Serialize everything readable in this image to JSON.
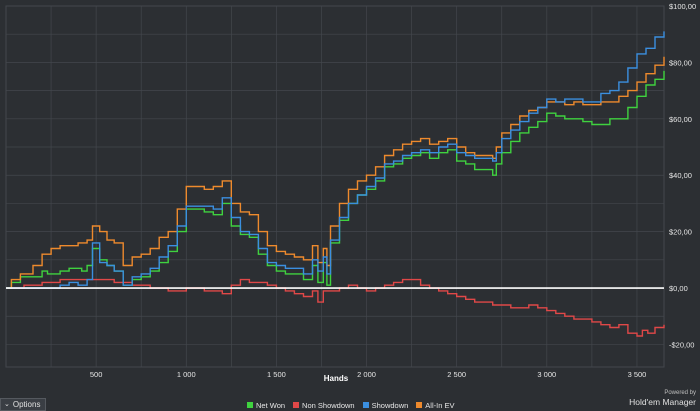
{
  "chart_data": {
    "type": "line",
    "xlabel": "Hands",
    "ylabel": "",
    "xlim": [
      0,
      3650
    ],
    "ylim": [
      -28,
      100
    ],
    "x_ticks": [
      500,
      1000,
      1500,
      2000,
      2500,
      3000,
      3500
    ],
    "x_tick_labels": [
      "500",
      "1 000",
      "1 500",
      "2 000",
      "2 500",
      "3 000",
      "3 500"
    ],
    "y_ticks": [
      -20,
      0,
      20,
      40,
      60,
      80,
      100
    ],
    "y_tick_labels": [
      "-$20,00",
      "$0,00",
      "$20,00",
      "$40,00",
      "$60,00",
      "$80,00",
      "$100,00"
    ],
    "zero_line": true,
    "grid": true,
    "legend_position": "bottom-center",
    "series": [
      {
        "name": "Net Won",
        "color": "#3fd23f",
        "points": [
          [
            0,
            0
          ],
          [
            30,
            2
          ],
          [
            80,
            4
          ],
          [
            150,
            4
          ],
          [
            200,
            6
          ],
          [
            230,
            5
          ],
          [
            300,
            6
          ],
          [
            350,
            7
          ],
          [
            420,
            6
          ],
          [
            450,
            8
          ],
          [
            480,
            14
          ],
          [
            520,
            10
          ],
          [
            560,
            8
          ],
          [
            600,
            6
          ],
          [
            650,
            1
          ],
          [
            700,
            3
          ],
          [
            750,
            4
          ],
          [
            800,
            6
          ],
          [
            850,
            9
          ],
          [
            900,
            13
          ],
          [
            950,
            20
          ],
          [
            1000,
            28
          ],
          [
            1050,
            28
          ],
          [
            1100,
            27
          ],
          [
            1150,
            26
          ],
          [
            1200,
            30
          ],
          [
            1250,
            22
          ],
          [
            1300,
            19
          ],
          [
            1350,
            18
          ],
          [
            1400,
            12
          ],
          [
            1450,
            8
          ],
          [
            1500,
            6
          ],
          [
            1550,
            5
          ],
          [
            1600,
            5
          ],
          [
            1650,
            3
          ],
          [
            1700,
            8
          ],
          [
            1730,
            2
          ],
          [
            1760,
            9
          ],
          [
            1780,
            1
          ],
          [
            1800,
            16
          ],
          [
            1850,
            24
          ],
          [
            1900,
            30
          ],
          [
            1950,
            33
          ],
          [
            2000,
            35
          ],
          [
            2050,
            38
          ],
          [
            2100,
            43
          ],
          [
            2150,
            44
          ],
          [
            2200,
            46
          ],
          [
            2250,
            47
          ],
          [
            2300,
            48
          ],
          [
            2350,
            46
          ],
          [
            2400,
            48
          ],
          [
            2450,
            49
          ],
          [
            2500,
            45
          ],
          [
            2550,
            44
          ],
          [
            2600,
            42
          ],
          [
            2650,
            42
          ],
          [
            2700,
            40
          ],
          [
            2720,
            44
          ],
          [
            2750,
            48
          ],
          [
            2800,
            52
          ],
          [
            2850,
            55
          ],
          [
            2900,
            57
          ],
          [
            2950,
            59
          ],
          [
            3000,
            62
          ],
          [
            3050,
            61
          ],
          [
            3100,
            60
          ],
          [
            3150,
            60
          ],
          [
            3200,
            59
          ],
          [
            3250,
            58
          ],
          [
            3300,
            58
          ],
          [
            3350,
            60
          ],
          [
            3400,
            60
          ],
          [
            3450,
            64
          ],
          [
            3500,
            68
          ],
          [
            3550,
            72
          ],
          [
            3600,
            74
          ],
          [
            3650,
            77
          ]
        ]
      },
      {
        "name": "Non Showdown",
        "color": "#e04848",
        "points": [
          [
            0,
            0
          ],
          [
            100,
            1
          ],
          [
            200,
            2
          ],
          [
            300,
            3
          ],
          [
            400,
            3
          ],
          [
            500,
            3
          ],
          [
            600,
            2
          ],
          [
            700,
            1
          ],
          [
            800,
            0
          ],
          [
            900,
            -1
          ],
          [
            1000,
            0
          ],
          [
            1100,
            -1
          ],
          [
            1200,
            -2
          ],
          [
            1250,
            1
          ],
          [
            1300,
            3
          ],
          [
            1350,
            2
          ],
          [
            1400,
            2
          ],
          [
            1450,
            1
          ],
          [
            1500,
            0
          ],
          [
            1550,
            -1
          ],
          [
            1600,
            -2
          ],
          [
            1650,
            -3
          ],
          [
            1700,
            -1
          ],
          [
            1730,
            -5
          ],
          [
            1760,
            -1
          ],
          [
            1800,
            -1
          ],
          [
            1850,
            0
          ],
          [
            1900,
            1
          ],
          [
            1950,
            0
          ],
          [
            2000,
            -1
          ],
          [
            2050,
            0
          ],
          [
            2100,
            1
          ],
          [
            2150,
            2
          ],
          [
            2200,
            3
          ],
          [
            2250,
            3
          ],
          [
            2300,
            1
          ],
          [
            2350,
            0
          ],
          [
            2400,
            -1
          ],
          [
            2450,
            -2
          ],
          [
            2500,
            -3
          ],
          [
            2550,
            -4
          ],
          [
            2600,
            -5
          ],
          [
            2650,
            -5
          ],
          [
            2700,
            -6
          ],
          [
            2750,
            -6
          ],
          [
            2800,
            -7
          ],
          [
            2850,
            -7
          ],
          [
            2900,
            -6
          ],
          [
            2950,
            -7
          ],
          [
            3000,
            -8
          ],
          [
            3050,
            -9
          ],
          [
            3100,
            -10
          ],
          [
            3150,
            -11
          ],
          [
            3200,
            -11
          ],
          [
            3250,
            -12
          ],
          [
            3300,
            -13
          ],
          [
            3350,
            -14
          ],
          [
            3400,
            -13
          ],
          [
            3450,
            -16
          ],
          [
            3500,
            -17
          ],
          [
            3530,
            -15
          ],
          [
            3560,
            -16
          ],
          [
            3600,
            -14
          ],
          [
            3650,
            -13
          ]
        ]
      },
      {
        "name": "Showdown",
        "color": "#3b8fe0",
        "points": [
          [
            0,
            0
          ],
          [
            100,
            0
          ],
          [
            200,
            0
          ],
          [
            300,
            1
          ],
          [
            350,
            2
          ],
          [
            400,
            1
          ],
          [
            450,
            3
          ],
          [
            480,
            16
          ],
          [
            520,
            9
          ],
          [
            560,
            8
          ],
          [
            600,
            6
          ],
          [
            650,
            1
          ],
          [
            700,
            4
          ],
          [
            750,
            5
          ],
          [
            800,
            7
          ],
          [
            850,
            11
          ],
          [
            900,
            15
          ],
          [
            950,
            22
          ],
          [
            1000,
            29
          ],
          [
            1050,
            29
          ],
          [
            1100,
            29
          ],
          [
            1150,
            28
          ],
          [
            1200,
            32
          ],
          [
            1250,
            25
          ],
          [
            1300,
            20
          ],
          [
            1350,
            19
          ],
          [
            1400,
            14
          ],
          [
            1450,
            9
          ],
          [
            1500,
            8
          ],
          [
            1550,
            7
          ],
          [
            1600,
            7
          ],
          [
            1650,
            5
          ],
          [
            1700,
            10
          ],
          [
            1730,
            6
          ],
          [
            1760,
            11
          ],
          [
            1780,
            5
          ],
          [
            1800,
            17
          ],
          [
            1850,
            25
          ],
          [
            1900,
            30
          ],
          [
            1950,
            33
          ],
          [
            2000,
            36
          ],
          [
            2050,
            39
          ],
          [
            2100,
            44
          ],
          [
            2150,
            45
          ],
          [
            2200,
            47
          ],
          [
            2250,
            48
          ],
          [
            2300,
            49
          ],
          [
            2350,
            48
          ],
          [
            2400,
            50
          ],
          [
            2450,
            51
          ],
          [
            2500,
            48
          ],
          [
            2550,
            47
          ],
          [
            2600,
            46
          ],
          [
            2650,
            46
          ],
          [
            2700,
            45
          ],
          [
            2720,
            48
          ],
          [
            2750,
            53
          ],
          [
            2800,
            56
          ],
          [
            2850,
            59
          ],
          [
            2900,
            62
          ],
          [
            2950,
            64
          ],
          [
            3000,
            67
          ],
          [
            3050,
            66
          ],
          [
            3100,
            67
          ],
          [
            3150,
            67
          ],
          [
            3200,
            66
          ],
          [
            3250,
            66
          ],
          [
            3300,
            69
          ],
          [
            3350,
            70
          ],
          [
            3400,
            73
          ],
          [
            3450,
            78
          ],
          [
            3500,
            83
          ],
          [
            3550,
            85
          ],
          [
            3600,
            89
          ],
          [
            3650,
            91
          ]
        ]
      },
      {
        "name": "All-In EV",
        "color": "#ee8a2d",
        "points": [
          [
            0,
            0
          ],
          [
            30,
            3
          ],
          [
            80,
            5
          ],
          [
            150,
            8
          ],
          [
            200,
            12
          ],
          [
            250,
            14
          ],
          [
            300,
            15
          ],
          [
            350,
            15
          ],
          [
            400,
            16
          ],
          [
            450,
            17
          ],
          [
            480,
            22
          ],
          [
            520,
            20
          ],
          [
            560,
            17
          ],
          [
            600,
            16
          ],
          [
            650,
            8
          ],
          [
            700,
            11
          ],
          [
            750,
            12
          ],
          [
            800,
            14
          ],
          [
            850,
            18
          ],
          [
            900,
            20
          ],
          [
            950,
            28
          ],
          [
            1000,
            36
          ],
          [
            1050,
            36
          ],
          [
            1100,
            35
          ],
          [
            1150,
            36
          ],
          [
            1200,
            38
          ],
          [
            1250,
            30
          ],
          [
            1300,
            27
          ],
          [
            1350,
            26
          ],
          [
            1400,
            20
          ],
          [
            1450,
            15
          ],
          [
            1500,
            13
          ],
          [
            1550,
            12
          ],
          [
            1600,
            11
          ],
          [
            1650,
            10
          ],
          [
            1700,
            15
          ],
          [
            1730,
            9
          ],
          [
            1760,
            14
          ],
          [
            1780,
            8
          ],
          [
            1800,
            22
          ],
          [
            1850,
            30
          ],
          [
            1900,
            35
          ],
          [
            1950,
            38
          ],
          [
            2000,
            40
          ],
          [
            2050,
            43
          ],
          [
            2100,
            47
          ],
          [
            2150,
            49
          ],
          [
            2200,
            51
          ],
          [
            2250,
            52
          ],
          [
            2300,
            53
          ],
          [
            2350,
            51
          ],
          [
            2400,
            52
          ],
          [
            2450,
            53
          ],
          [
            2500,
            50
          ],
          [
            2550,
            48
          ],
          [
            2600,
            47
          ],
          [
            2650,
            47
          ],
          [
            2700,
            46
          ],
          [
            2720,
            50
          ],
          [
            2750,
            55
          ],
          [
            2800,
            58
          ],
          [
            2850,
            61
          ],
          [
            2900,
            63
          ],
          [
            2950,
            64
          ],
          [
            3000,
            66
          ],
          [
            3050,
            66
          ],
          [
            3100,
            65
          ],
          [
            3150,
            66
          ],
          [
            3200,
            65
          ],
          [
            3250,
            65
          ],
          [
            3300,
            66
          ],
          [
            3350,
            66
          ],
          [
            3400,
            68
          ],
          [
            3450,
            70
          ],
          [
            3500,
            73
          ],
          [
            3550,
            76
          ],
          [
            3600,
            79
          ],
          [
            3650,
            82
          ]
        ]
      }
    ]
  },
  "ui": {
    "options_label": "Options",
    "powered_by": "Powered by",
    "brand": "Hold'em Manager"
  },
  "colors": {
    "background": "#2c2f33",
    "grid": "#43474d",
    "zero_line": "#ffffff"
  }
}
